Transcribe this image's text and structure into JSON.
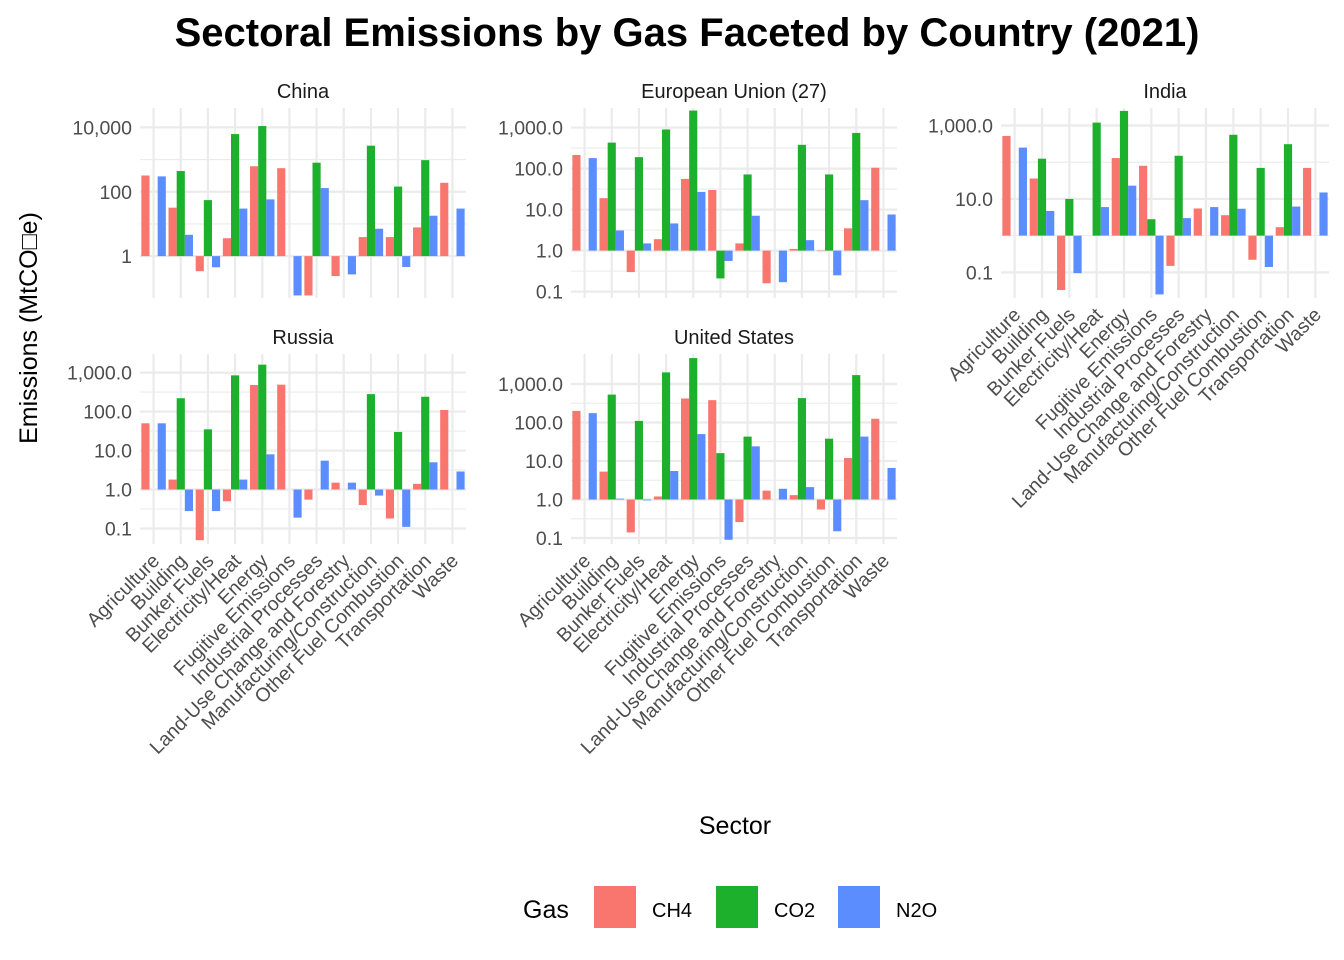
{
  "chart_data": {
    "type": "bar",
    "title": "Sectoral Emissions by Gas Faceted by Country (2021)",
    "xlabel": "Sector",
    "ylabel": "Emissions (MtCO□e)",
    "y_scale": "log10",
    "legend": {
      "title": "Gas",
      "position": "bottom"
    },
    "categories": [
      "Agriculture",
      "Building",
      "Bunker Fuels",
      "Electricity/Heat",
      "Energy",
      "Fugitive Emissions",
      "Industrial Processes",
      "Land-Use Change and Forestry",
      "Manufacturing/Construction",
      "Other Fuel Combustion",
      "Transportation",
      "Waste"
    ],
    "gases": [
      "CH4",
      "CO2",
      "N2O"
    ],
    "colors": {
      "CH4": "#F8766D",
      "CO2": "#1DB02D",
      "N2O": "#5C8DFF"
    },
    "facets": [
      {
        "name": "China",
        "ylim": [
          0.05,
          40000
        ],
        "tick_labels": [
          "1",
          "100",
          "10,000"
        ],
        "series": [
          {
            "name": "CH4",
            "values": [
              320,
              32,
              0.34,
              3.6,
              620,
              540,
              0.06,
              0.24,
              3.9,
              3.9,
              7.8,
              190
            ]
          },
          {
            "name": "CO2",
            "values": [
              null,
              440,
              55,
              6200,
              11000,
              null,
              800,
              null,
              2700,
              145,
              960,
              null
            ]
          },
          {
            "name": "N2O",
            "values": [
              300,
              4.6,
              0.45,
              30,
              58,
              0.06,
              130,
              0.27,
              7.1,
              0.46,
              18,
              30
            ]
          }
        ]
      },
      {
        "name": "European Union (27)",
        "ylim": [
          0.07,
          3000
        ],
        "tick_labels": [
          "0.1",
          "1.0",
          "10.0",
          "100.0",
          "1,000.0"
        ],
        "series": [
          {
            "name": "CH4",
            "values": [
              215,
              19,
              0.3,
              1.9,
              56,
              30,
              1.5,
              0.16,
              1.1,
              1.0,
              3.5,
              105
            ]
          },
          {
            "name": "CO2",
            "values": [
              null,
              430,
              190,
              900,
              2600,
              0.21,
              72,
              null,
              380,
              72,
              740,
              null
            ]
          },
          {
            "name": "N2O",
            "values": [
              180,
              3.1,
              1.5,
              4.6,
              27,
              0.56,
              7.1,
              0.17,
              1.8,
              0.25,
              17,
              7.6
            ]
          }
        ]
      },
      {
        "name": "India",
        "ylim": [
          0.02,
          3000
        ],
        "tick_labels": [
          "0.1",
          "10.0",
          "1,000.0"
        ],
        "series": [
          {
            "name": "CH4",
            "values": [
              520,
              36,
              0.033,
              null,
              130,
              80,
              0.15,
              5.5,
              3.6,
              0.22,
              1.7,
              70
            ]
          },
          {
            "name": "CO2",
            "values": [
              null,
              125,
              10,
              1200,
              2500,
              2.8,
              150,
              null,
              560,
              70,
              310,
              null
            ]
          },
          {
            "name": "N2O",
            "values": [
              250,
              4.7,
              0.095,
              6.0,
              23,
              0.025,
              3.0,
              6.0,
              5.4,
              0.14,
              6.2,
              15
            ]
          }
        ]
      },
      {
        "name": "Russia",
        "ylim": [
          0.04,
          3000
        ],
        "tick_labels": [
          "0.1",
          "1.0",
          "10.0",
          "100.0",
          "1,000.0"
        ],
        "series": [
          {
            "name": "CH4",
            "values": [
              50,
              1.8,
              0.05,
              0.5,
              480,
              490,
              0.55,
              1.5,
              0.4,
              0.18,
              1.4,
              110
            ]
          },
          {
            "name": "CO2",
            "values": [
              null,
              220,
              35,
              850,
              1600,
              null,
              null,
              null,
              280,
              30,
              240,
              null
            ]
          },
          {
            "name": "N2O",
            "values": [
              50,
              0.28,
              0.28,
              1.8,
              8.0,
              0.19,
              5.5,
              1.5,
              0.7,
              0.11,
              5.0,
              2.9
            ]
          }
        ]
      },
      {
        "name": "United States",
        "ylim": [
          0.07,
          6000
        ],
        "tick_labels": [
          "0.1",
          "1.0",
          "10.0",
          "100.0",
          "1,000.0"
        ],
        "series": [
          {
            "name": "CH4",
            "values": [
              200,
              5.3,
              0.14,
              1.2,
              420,
              380,
              0.26,
              1.7,
              1.3,
              0.55,
              12,
              125
            ]
          },
          {
            "name": "CO2",
            "values": [
              null,
              530,
              110,
              2000,
              4700,
              16,
              43,
              null,
              430,
              38,
              1700,
              null
            ]
          },
          {
            "name": "N2O",
            "values": [
              175,
              1.05,
              0.95,
              5.5,
              50,
              0.09,
              24,
              1.9,
              2.1,
              0.15,
              43,
              6.6
            ]
          }
        ]
      }
    ]
  }
}
